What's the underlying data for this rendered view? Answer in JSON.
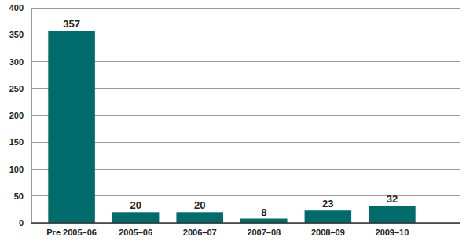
{
  "chart_data": {
    "type": "bar",
    "categories": [
      "Pre 2005–06",
      "2005–06",
      "2006–07",
      "2007–08",
      "2008–09",
      "2009–10"
    ],
    "values": [
      357,
      20,
      20,
      8,
      23,
      32
    ],
    "color": "#006b6b",
    "ylim": [
      0,
      400
    ],
    "yticks": [
      0,
      50,
      100,
      150,
      200,
      250,
      300,
      350,
      400
    ],
    "grid": true,
    "data_labels": true
  }
}
